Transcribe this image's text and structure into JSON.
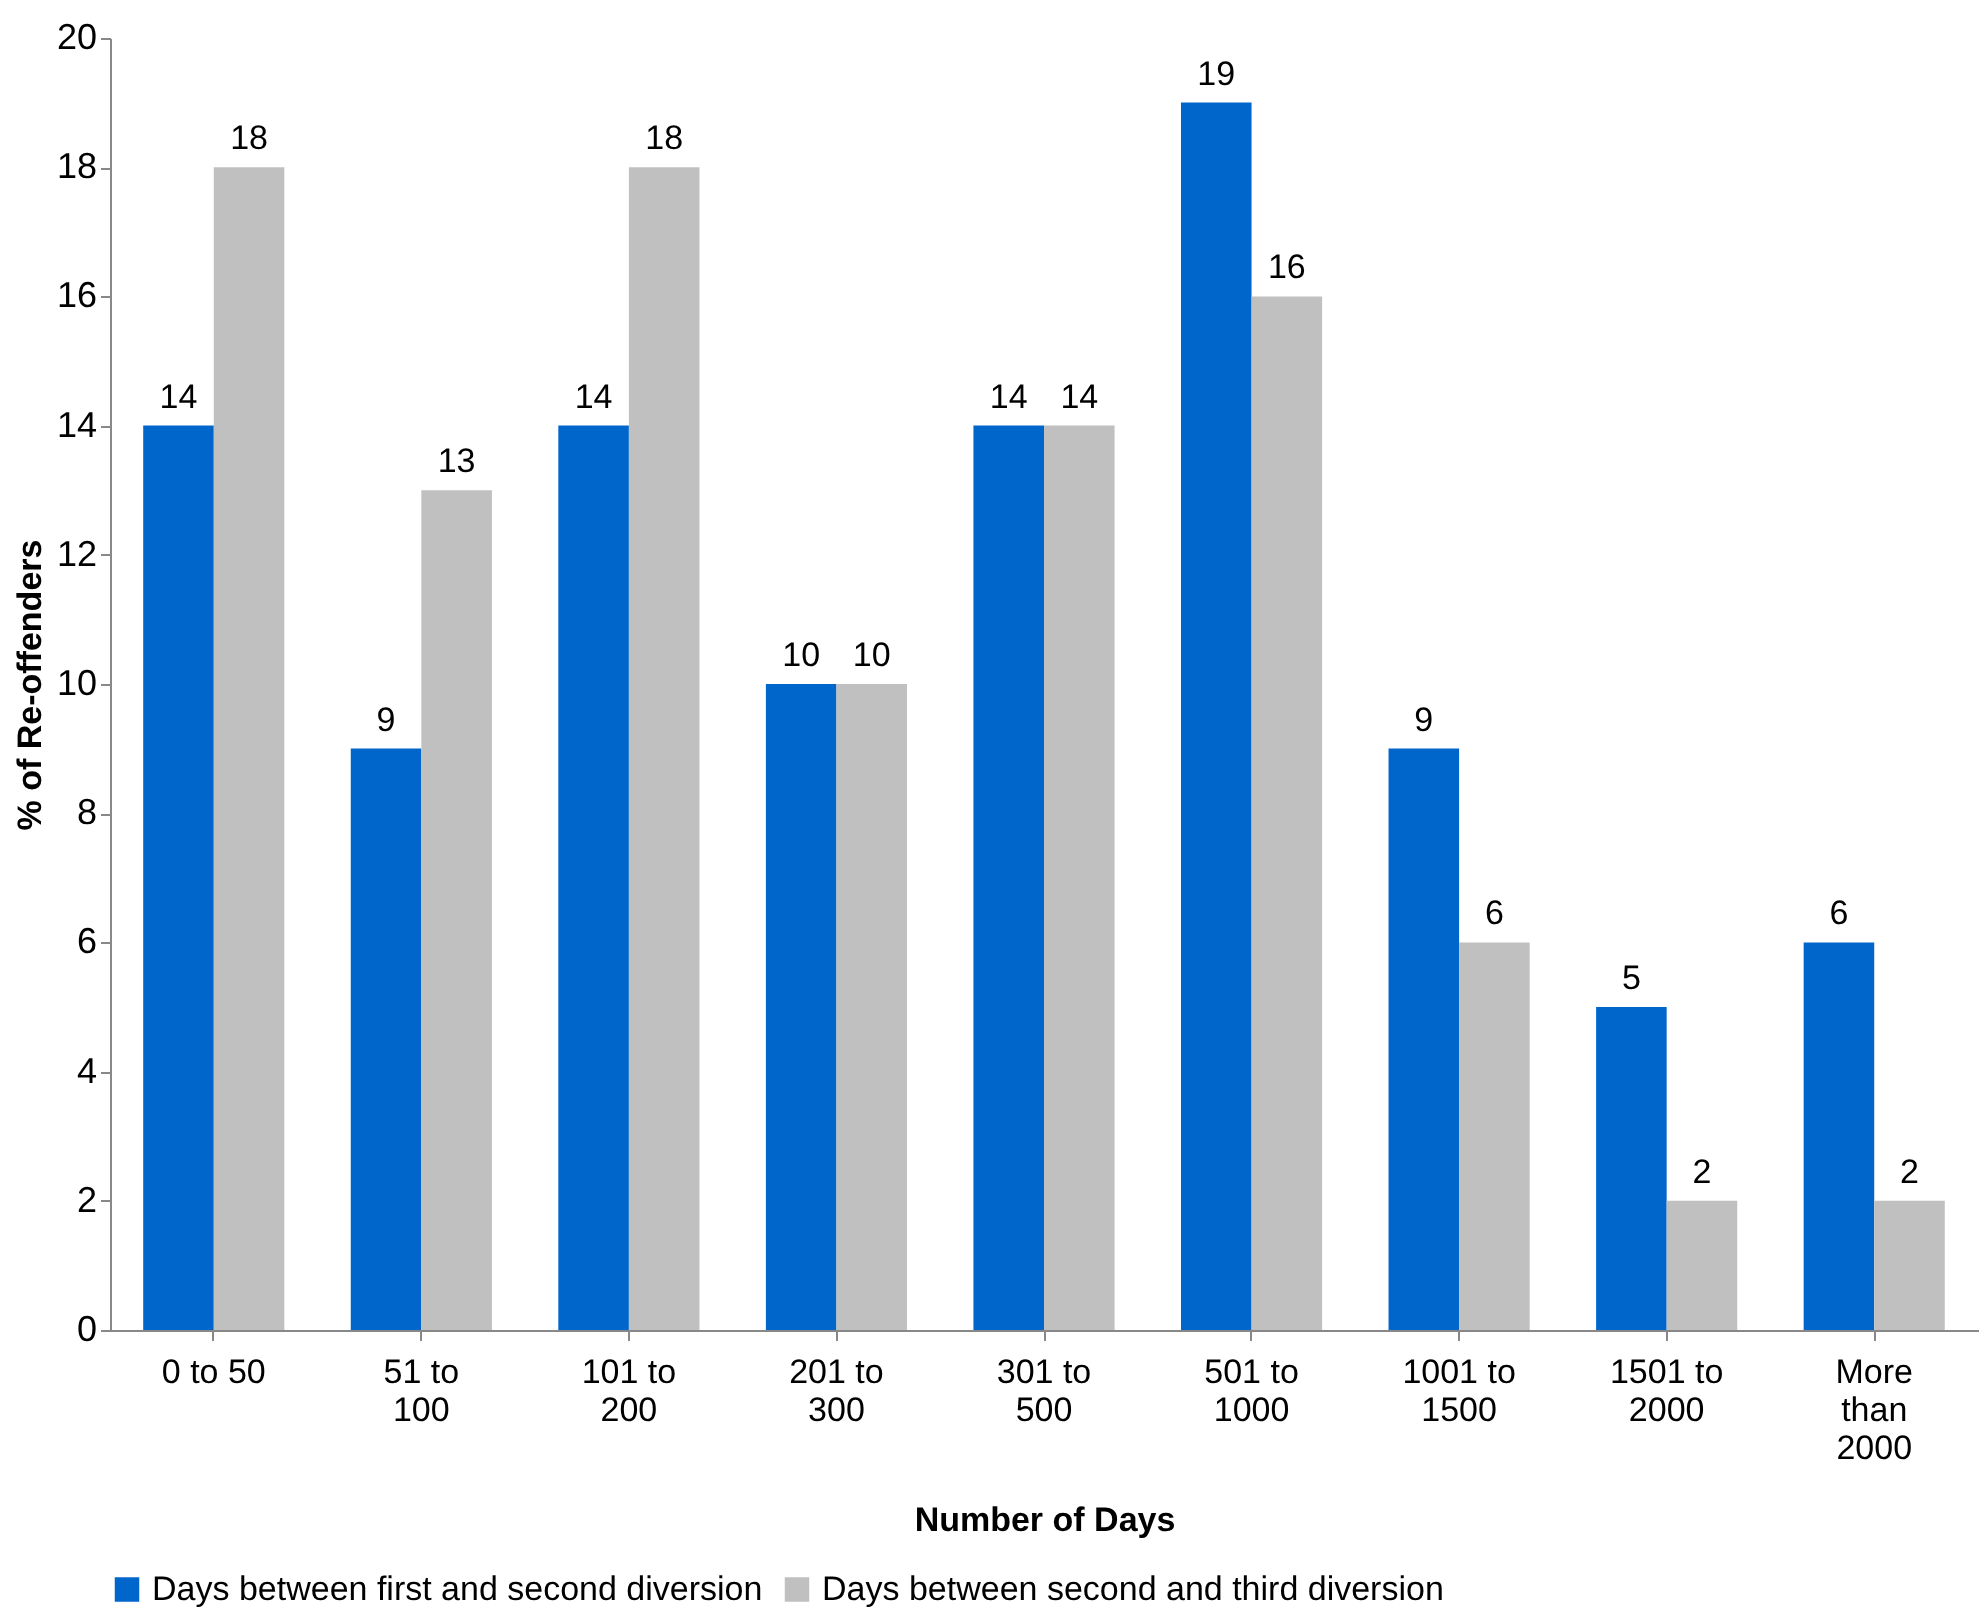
{
  "chart_data": {
    "type": "bar",
    "xlabel": "Number of Days",
    "ylabel": "% of Re-offenders",
    "categories": [
      "0 to 50",
      "51 to 100",
      "101 to 200",
      "201 to 300",
      "301 to 500",
      "501 to 1000",
      "1001 to 1500",
      "1501 to 2000",
      "More than 2000"
    ],
    "series": [
      {
        "name": "Days between first and second diversion",
        "color": "#0066cc",
        "values": [
          14,
          9,
          14,
          10,
          14,
          19,
          9,
          5,
          6
        ]
      },
      {
        "name": "Days between second and third diversion",
        "color": "#c0c0c0",
        "values": [
          18,
          13,
          18,
          10,
          14,
          16,
          6,
          2,
          2
        ]
      }
    ],
    "ylim": [
      0,
      20
    ],
    "yticks": [
      0,
      2,
      4,
      6,
      8,
      10,
      12,
      14,
      16,
      18,
      20
    ],
    "grid": false,
    "legend": "bottom",
    "data_labels": true
  }
}
